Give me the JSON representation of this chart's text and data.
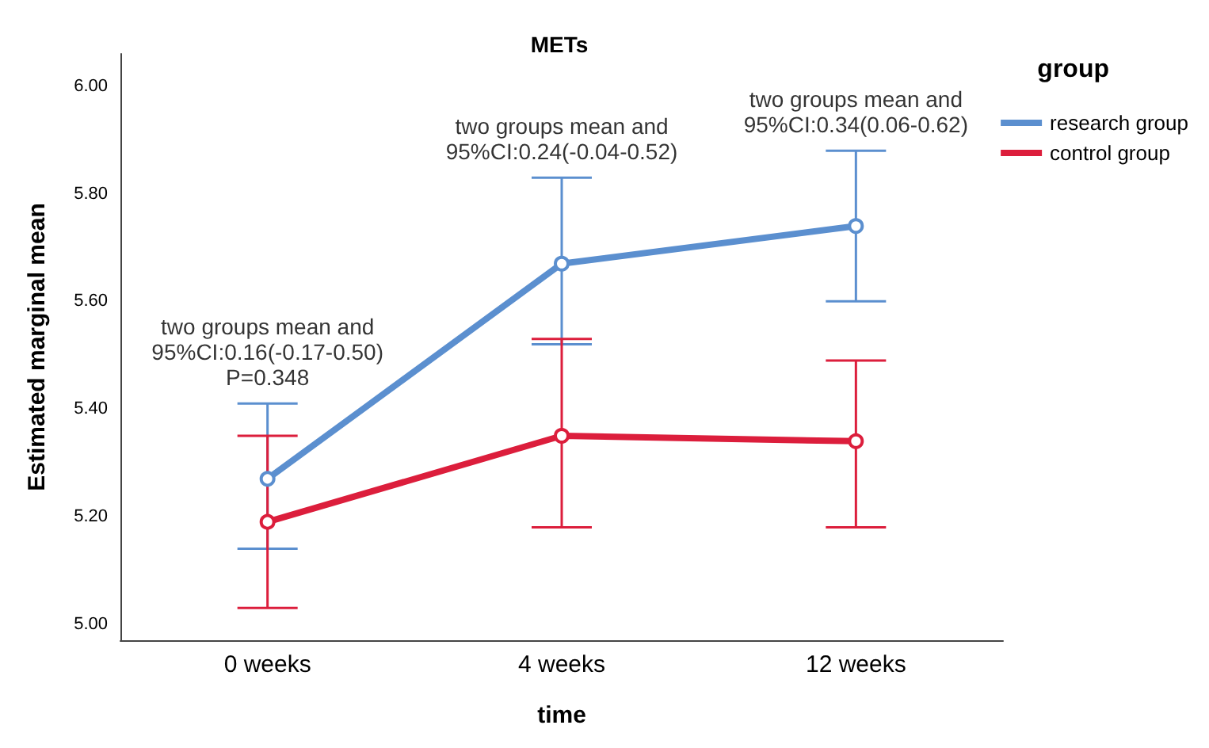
{
  "chart_data": {
    "type": "line",
    "title": "METs",
    "xlabel": "time",
    "ylabel": "Estimated marginal mean",
    "legend_title": "group",
    "legend": "top right",
    "marker": "circle",
    "line_style": "solid",
    "grid": false,
    "categories": [
      "0 weeks",
      "4 weeks",
      "12 weeks"
    ],
    "series": [
      {
        "name": "research group",
        "color": "#5b8fcf",
        "values": [
          5.27,
          5.67,
          5.74
        ],
        "errors": [
          [
            5.14,
            5.41
          ],
          [
            5.52,
            5.83
          ],
          [
            5.6,
            5.88
          ]
        ]
      },
      {
        "name": "control group",
        "color": "#dc1e3c",
        "values": [
          5.19,
          5.35,
          5.34
        ],
        "errors": [
          [
            5.03,
            5.35
          ],
          [
            5.18,
            5.53
          ],
          [
            5.18,
            5.49
          ]
        ]
      }
    ],
    "ylim": [
      4.97,
      6.06
    ],
    "yticks": [
      {
        "value": 5.0,
        "label": "5.00"
      },
      {
        "value": 5.2,
        "label": "5.20"
      },
      {
        "value": 5.4,
        "label": "5.40"
      },
      {
        "value": 5.6,
        "label": "5.60"
      },
      {
        "value": 5.8,
        "label": "5.80"
      },
      {
        "value": 6.0,
        "label": "6.00"
      }
    ],
    "annotations": [
      {
        "text": "two groups mean and\n95%CI:0.16(-0.17-0.50)\nP=0.348",
        "x": "0 weeks",
        "y": 5.42
      },
      {
        "text": "two groups mean and\n95%CI:0.24(-0.04-0.52)",
        "x": "4 weeks",
        "y": 5.84
      },
      {
        "text": "two groups mean and\n95%CI:0.34(0.06-0.62)",
        "x": "12 weeks",
        "y": 5.89
      }
    ]
  }
}
